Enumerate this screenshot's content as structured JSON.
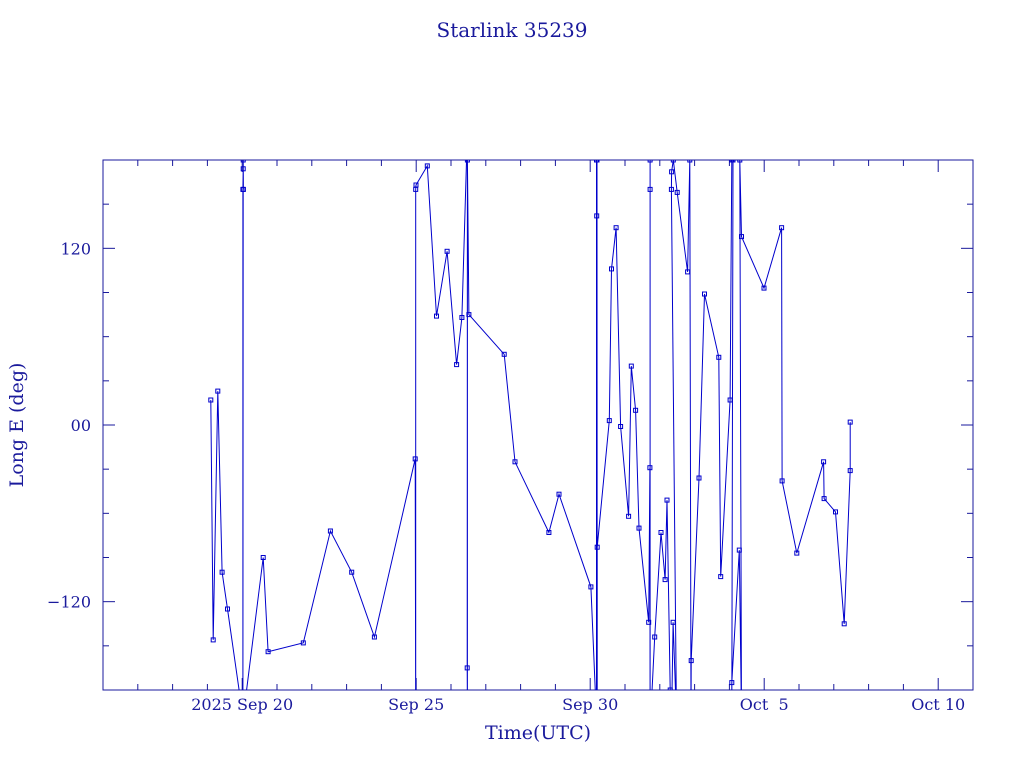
{
  "chart_data": {
    "type": "line",
    "title": "Starlink 35239",
    "xlabel": "Time(UTC)",
    "ylabel": "Long E (deg)",
    "color": "#0000cc",
    "text_color": "#1a1a9c",
    "marker": "square",
    "grid": false,
    "x_range": [
      "2025-09-16T00:00",
      "2025-10-11T00:00"
    ],
    "ylim": [
      -180,
      180
    ],
    "x_ticks": [
      {
        "date": "2025-09-20",
        "label": "2025 Sep 20"
      },
      {
        "date": "2025-09-25",
        "label": "Sep 25"
      },
      {
        "date": "2025-09-30",
        "label": "Sep 30"
      },
      {
        "date": "2025-10-05",
        "label": "Oct  5"
      },
      {
        "date": "2025-10-10",
        "label": "Oct 10"
      }
    ],
    "y_ticks": [
      {
        "value": 120,
        "label": "120"
      },
      {
        "value": 0,
        "label": "00"
      },
      {
        "value": -120,
        "label": "−120"
      }
    ],
    "series": [
      {
        "points": [
          [
            "2025-09-19T02:20",
            17
          ],
          [
            "2025-09-19T04:00",
            -146
          ],
          [
            "2025-09-19T07:10",
            23
          ],
          [
            "2025-09-19T10:10",
            -100
          ],
          [
            "2025-09-19T13:50",
            -125
          ],
          [
            "2025-09-19T22:00",
            -181
          ],
          [
            "2025-09-20T00:30",
            -200
          ],
          [
            "2025-09-20T00:30",
            160
          ],
          [
            "2025-09-20T00:40",
            174
          ],
          [
            "2025-09-20T00:50",
            160
          ],
          [
            "2025-09-20T00:40",
            180
          ],
          [
            "2025-09-20T00:30",
            -200
          ],
          [
            "2025-09-20T14:30",
            -90
          ],
          [
            "2025-09-20T17:50",
            -154
          ],
          [
            "2025-09-21T18:10",
            -148
          ],
          [
            "2025-09-22T12:50",
            -72
          ],
          [
            "2025-09-23T03:30",
            -100
          ],
          [
            "2025-09-23T19:10",
            -144
          ],
          [
            "2025-09-24T23:20",
            -23
          ],
          [
            "2025-09-24T23:40",
            -200
          ],
          [
            "2025-09-24T23:40",
            160
          ],
          [
            "2025-09-24T23:50",
            163
          ],
          [
            "2025-09-25T07:40",
            176
          ],
          [
            "2025-09-25T14:00",
            74
          ],
          [
            "2025-09-25T21:20",
            118
          ],
          [
            "2025-09-26T03:50",
            41
          ],
          [
            "2025-09-26T07:30",
            73
          ],
          [
            "2025-09-26T11:20",
            200
          ],
          [
            "2025-09-26T11:20",
            -200
          ],
          [
            "2025-09-26T11:10",
            -165
          ],
          [
            "2025-09-26T11:20",
            180
          ],
          [
            "2025-09-26T12:20",
            75
          ],
          [
            "2025-09-27T12:40",
            48
          ],
          [
            "2025-09-27T20:10",
            -25
          ],
          [
            "2025-09-28T19:30",
            -73
          ],
          [
            "2025-09-29T02:30",
            -47
          ],
          [
            "2025-09-30T00:30",
            -110
          ],
          [
            "2025-09-30T04:20",
            -200
          ],
          [
            "2025-09-30T04:20",
            180
          ],
          [
            "2025-09-30T04:30",
            142
          ],
          [
            "2025-09-30T04:40",
            180
          ],
          [
            "2025-09-30T04:50",
            -200
          ],
          [
            "2025-09-30T04:50",
            -83
          ],
          [
            "2025-09-30T13:10",
            3
          ],
          [
            "2025-09-30T14:40",
            106
          ],
          [
            "2025-09-30T17:50",
            134
          ],
          [
            "2025-09-30T21:00",
            -1
          ],
          [
            "2025-10-01T02:30",
            -62
          ],
          [
            "2025-10-01T04:20",
            40
          ],
          [
            "2025-10-01T07:20",
            10
          ],
          [
            "2025-10-01T09:40",
            -70
          ],
          [
            "2025-10-01T16:20",
            -134
          ],
          [
            "2025-10-01T17:10",
            -29
          ],
          [
            "2025-10-01T17:20",
            -200
          ],
          [
            "2025-10-01T17:20",
            160
          ],
          [
            "2025-10-01T17:20",
            180
          ],
          [
            "2025-10-01T17:20",
            -200
          ],
          [
            "2025-10-01T17:40",
            -200
          ],
          [
            "2025-10-01T20:30",
            -144
          ],
          [
            "2025-10-02T00:50",
            -73
          ],
          [
            "2025-10-02T03:40",
            -105
          ],
          [
            "2025-10-02T05:00",
            -51
          ],
          [
            "2025-10-02T07:10",
            -180
          ],
          [
            "2025-10-02T08:10",
            -200
          ],
          [
            "2025-10-02T09:10",
            -134
          ],
          [
            "2025-10-02T11:30",
            -200
          ],
          [
            "2025-10-02T08:00",
            160
          ],
          [
            "2025-10-02T08:10",
            172
          ],
          [
            "2025-10-02T09:20",
            180
          ],
          [
            "2025-10-02T12:00",
            158
          ],
          [
            "2025-10-02T19:10",
            104
          ],
          [
            "2025-10-02T20:40",
            180
          ],
          [
            "2025-10-02T21:30",
            -200
          ],
          [
            "2025-10-02T21:30",
            -200
          ],
          [
            "2025-10-02T21:40",
            -160
          ],
          [
            "2025-10-03T03:00",
            -36
          ],
          [
            "2025-10-03T06:50",
            89
          ],
          [
            "2025-10-03T16:40",
            46
          ],
          [
            "2025-10-03T18:00",
            -103
          ],
          [
            "2025-10-04T00:30",
            17
          ],
          [
            "2025-10-04T01:40",
            180
          ],
          [
            "2025-10-04T02:30",
            180
          ],
          [
            "2025-10-04T01:40",
            -200
          ],
          [
            "2025-10-04T01:40",
            -175
          ],
          [
            "2025-10-04T06:50",
            -85
          ],
          [
            "2025-10-04T08:20",
            -200
          ],
          [
            "2025-10-04T07:10",
            180
          ],
          [
            "2025-10-04T08:20",
            128
          ],
          [
            "2025-10-04T23:50",
            93
          ],
          [
            "2025-10-05T12:00",
            134
          ],
          [
            "2025-10-05T12:20",
            -38
          ],
          [
            "2025-10-05T22:30",
            -87
          ],
          [
            "2025-10-06T17:00",
            -25
          ],
          [
            "2025-10-06T17:20",
            -50
          ],
          [
            "2025-10-07T01:10",
            -59
          ],
          [
            "2025-10-07T07:10",
            -135
          ],
          [
            "2025-10-07T11:20",
            -31
          ],
          [
            "2025-10-07T11:20",
            2
          ]
        ]
      }
    ]
  }
}
